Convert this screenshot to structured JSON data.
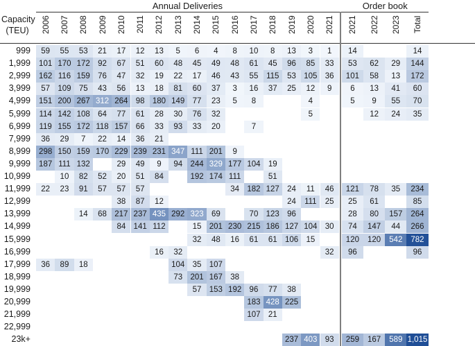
{
  "chart_data": {
    "type": "heatmap",
    "row_header": "Capacity\n(TEU)",
    "group_titles": [
      "Annual Deliveries",
      "Order book"
    ],
    "columns": [
      {
        "label": "2006",
        "group": 0
      },
      {
        "label": "2007",
        "group": 0
      },
      {
        "label": "2008",
        "group": 0
      },
      {
        "label": "2009",
        "group": 0
      },
      {
        "label": "2010",
        "group": 0
      },
      {
        "label": "2011",
        "group": 0
      },
      {
        "label": "2012",
        "group": 0
      },
      {
        "label": "2013",
        "group": 0
      },
      {
        "label": "2014",
        "group": 0
      },
      {
        "label": "2015",
        "group": 0
      },
      {
        "label": "2016",
        "group": 0
      },
      {
        "label": "2017",
        "group": 0
      },
      {
        "label": "2018",
        "group": 0
      },
      {
        "label": "2019",
        "group": 0
      },
      {
        "label": "2020",
        "group": 0
      },
      {
        "label": "2021",
        "group": 0
      },
      {
        "label": "2021",
        "group": 1
      },
      {
        "label": "2022",
        "group": 1
      },
      {
        "label": "2023",
        "group": 1
      },
      {
        "label": "Total",
        "group": 1
      }
    ],
    "rows": [
      "999",
      "1,999",
      "2,999",
      "3,999",
      "4,999",
      "5,999",
      "6,999",
      "7,999",
      "8,999",
      "9,999",
      "10,999",
      "11,999",
      "12,999",
      "13,999",
      "14,999",
      "15,999",
      "16,999",
      "17,999",
      "18,999",
      "19,999",
      "20,999",
      "21,999",
      "22,999",
      "23k+"
    ],
    "values": [
      [
        59,
        55,
        53,
        21,
        17,
        12,
        13,
        5,
        6,
        4,
        8,
        10,
        8,
        13,
        3,
        1,
        14,
        null,
        null,
        14
      ],
      [
        101,
        170,
        172,
        92,
        67,
        51,
        60,
        48,
        45,
        49,
        48,
        61,
        45,
        96,
        85,
        33,
        53,
        62,
        29,
        144
      ],
      [
        162,
        116,
        159,
        76,
        47,
        32,
        19,
        22,
        17,
        46,
        43,
        55,
        115,
        53,
        105,
        36,
        101,
        58,
        13,
        172
      ],
      [
        57,
        109,
        75,
        43,
        56,
        13,
        18,
        81,
        60,
        37,
        3,
        16,
        37,
        25,
        12,
        9,
        6,
        13,
        41,
        60
      ],
      [
        151,
        200,
        267,
        312,
        264,
        98,
        180,
        149,
        77,
        23,
        5,
        8,
        null,
        null,
        4,
        null,
        5,
        9,
        55,
        70
      ],
      [
        114,
        142,
        108,
        64,
        77,
        61,
        28,
        30,
        76,
        32,
        null,
        null,
        null,
        null,
        5,
        null,
        null,
        12,
        24,
        35
      ],
      [
        119,
        155,
        172,
        118,
        157,
        66,
        33,
        93,
        33,
        20,
        null,
        7,
        null,
        null,
        null,
        null,
        null,
        null,
        null,
        null
      ],
      [
        36,
        29,
        7,
        22,
        14,
        36,
        21,
        null,
        null,
        null,
        null,
        null,
        null,
        null,
        null,
        null,
        null,
        null,
        null,
        null
      ],
      [
        298,
        150,
        159,
        170,
        229,
        239,
        231,
        347,
        111,
        201,
        9,
        null,
        null,
        null,
        null,
        null,
        null,
        null,
        null,
        null
      ],
      [
        187,
        111,
        132,
        null,
        29,
        49,
        9,
        94,
        244,
        329,
        177,
        104,
        19,
        null,
        null,
        null,
        null,
        null,
        null,
        null
      ],
      [
        null,
        10,
        82,
        52,
        20,
        51,
        84,
        null,
        192,
        174,
        111,
        null,
        51,
        null,
        null,
        null,
        null,
        null,
        null,
        null
      ],
      [
        22,
        23,
        91,
        57,
        57,
        57,
        null,
        null,
        null,
        null,
        34,
        182,
        127,
        24,
        11,
        46,
        121,
        78,
        35,
        234
      ],
      [
        null,
        null,
        null,
        null,
        38,
        87,
        12,
        null,
        null,
        null,
        null,
        null,
        null,
        24,
        111,
        25,
        25,
        61,
        null,
        85
      ],
      [
        null,
        null,
        14,
        68,
        217,
        237,
        435,
        292,
        323,
        69,
        null,
        70,
        123,
        96,
        null,
        null,
        28,
        80,
        157,
        264
      ],
      [
        null,
        null,
        null,
        null,
        84,
        141,
        112,
        null,
        15,
        201,
        230,
        215,
        186,
        127,
        104,
        30,
        74,
        147,
        44,
        266
      ],
      [
        null,
        null,
        null,
        null,
        null,
        null,
        null,
        null,
        32,
        48,
        16,
        61,
        61,
        106,
        15,
        null,
        120,
        120,
        542,
        782
      ],
      [
        null,
        null,
        null,
        null,
        null,
        null,
        16,
        32,
        null,
        null,
        null,
        null,
        null,
        null,
        null,
        32,
        96,
        null,
        null,
        96
      ],
      [
        36,
        89,
        18,
        null,
        null,
        null,
        null,
        104,
        35,
        107,
        null,
        null,
        null,
        null,
        null,
        null,
        null,
        null,
        null,
        null
      ],
      [
        null,
        null,
        null,
        null,
        null,
        null,
        null,
        73,
        201,
        167,
        38,
        null,
        null,
        null,
        null,
        null,
        null,
        null,
        null,
        null
      ],
      [
        null,
        null,
        null,
        null,
        null,
        null,
        null,
        null,
        57,
        153,
        192,
        96,
        77,
        38,
        null,
        null,
        null,
        null,
        null,
        null
      ],
      [
        null,
        null,
        null,
        null,
        null,
        null,
        null,
        null,
        null,
        null,
        null,
        183,
        428,
        225,
        null,
        null,
        null,
        null,
        null,
        null
      ],
      [
        null,
        null,
        null,
        null,
        null,
        null,
        null,
        null,
        null,
        null,
        null,
        107,
        21,
        null,
        null,
        null,
        null,
        null,
        null,
        null
      ],
      [
        null,
        null,
        null,
        null,
        null,
        null,
        null,
        null,
        null,
        null,
        null,
        null,
        null,
        null,
        null,
        null,
        null,
        null,
        null,
        null
      ],
      [
        null,
        null,
        null,
        null,
        null,
        null,
        null,
        null,
        null,
        null,
        null,
        null,
        null,
        237,
        403,
        93,
        259,
        167,
        589,
        "1,015"
      ]
    ],
    "color_scale": {
      "low": "#f3f7fc",
      "high": "#1f4e96",
      "text_dark": "#1a1a1a",
      "text_light": "#ffffff"
    }
  }
}
